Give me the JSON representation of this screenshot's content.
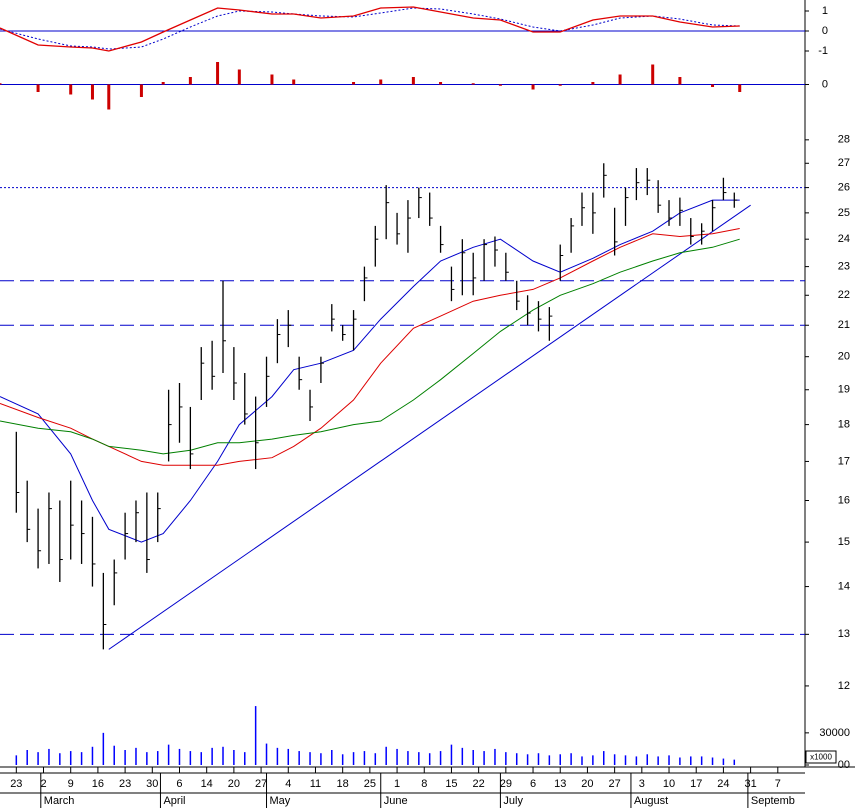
{
  "chart_data": {
    "type": "stock",
    "xlim": [
      -3,
      145
    ],
    "xticks": [
      {
        "value": 0,
        "label": "23"
      },
      {
        "value": 5,
        "label": "2"
      },
      {
        "value": 10,
        "label": "9"
      },
      {
        "value": 15,
        "label": "16"
      },
      {
        "value": 20,
        "label": "23"
      },
      {
        "value": 25,
        "label": "30"
      },
      {
        "value": 30,
        "label": "6"
      },
      {
        "value": 35,
        "label": "14"
      },
      {
        "value": 40,
        "label": "20"
      },
      {
        "value": 45,
        "label": "27"
      },
      {
        "value": 50,
        "label": "4"
      },
      {
        "value": 55,
        "label": "11"
      },
      {
        "value": 60,
        "label": "18"
      },
      {
        "value": 65,
        "label": "25"
      },
      {
        "value": 70,
        "label": "1"
      },
      {
        "value": 75,
        "label": "8"
      },
      {
        "value": 80,
        "label": "15"
      },
      {
        "value": 85,
        "label": "22"
      },
      {
        "value": 90,
        "label": "29"
      },
      {
        "value": 95,
        "label": "6"
      },
      {
        "value": 100,
        "label": "13"
      },
      {
        "value": 105,
        "label": "20"
      },
      {
        "value": 110,
        "label": "27"
      },
      {
        "value": 115,
        "label": "3"
      },
      {
        "value": 120,
        "label": "10"
      },
      {
        "value": 125,
        "label": "17"
      },
      {
        "value": 130,
        "label": "24"
      },
      {
        "value": 135,
        "label": "31"
      },
      {
        "value": 140,
        "label": "7"
      }
    ],
    "months": [
      {
        "value": 4.5,
        "label": "March"
      },
      {
        "value": 26.5,
        "label": "April"
      },
      {
        "value": 46,
        "label": "May"
      },
      {
        "value": 67,
        "label": "June"
      },
      {
        "value": 89,
        "label": "July"
      },
      {
        "value": 113,
        "label": "August"
      },
      {
        "value": 134.5,
        "label": "Septemb"
      }
    ],
    "ma_x": [
      -3,
      4,
      10,
      14,
      17,
      23,
      27,
      32,
      37,
      41,
      47,
      51,
      56,
      62,
      67,
      73,
      78,
      84,
      89,
      95,
      100,
      106,
      111,
      117,
      122,
      128,
      133
    ],
    "macd": {
      "ylim": [
        -1.25,
        1.55
      ],
      "yticks": [
        1,
        0,
        -1
      ],
      "zero_line": true,
      "zero_color": "#0000cc",
      "line_color": "#e00000",
      "signal_color": "#0000cc",
      "signal_style": "dotted",
      "line": [
        0.15,
        -0.7,
        -0.8,
        -0.85,
        -1.0,
        -0.55,
        -0.05,
        0.55,
        1.15,
        1.05,
        0.85,
        0.85,
        0.65,
        0.75,
        1.15,
        1.2,
        0.95,
        0.65,
        0.55,
        -0.05,
        -0.05,
        0.55,
        0.75,
        0.75,
        0.45,
        0.2,
        0.25
      ],
      "signal": [
        0.1,
        -0.4,
        -0.75,
        -0.8,
        -0.9,
        -0.8,
        -0.4,
        0.2,
        0.75,
        1.0,
        0.95,
        0.85,
        0.75,
        0.7,
        0.9,
        1.15,
        1.1,
        0.85,
        0.6,
        0.2,
        0.0,
        0.3,
        0.65,
        0.75,
        0.6,
        0.3,
        0.25
      ]
    },
    "histogram": {
      "ylim": [
        -1.1,
        1.06
      ],
      "yticks": [
        0
      ],
      "zero_line": true,
      "zero_color": "#0000cc",
      "color": "#cc0000",
      "values": [
        0.05,
        -0.3,
        -0.4,
        -0.6,
        -1.0,
        -0.5,
        0.1,
        0.3,
        0.9,
        0.6,
        0.4,
        0.2,
        0.0,
        0.1,
        0.2,
        0.3,
        0.1,
        0.05,
        -0.05,
        -0.2,
        -0.05,
        0.1,
        0.4,
        0.8,
        0.3,
        -0.1,
        -0.3
      ]
    },
    "price": {
      "log_scale": true,
      "ylim": [
        11.65,
        29.1
      ],
      "yticks": [
        28,
        27,
        26,
        25,
        24,
        23,
        22,
        21,
        20,
        19,
        18,
        17,
        16,
        15,
        14,
        13,
        12
      ],
      "color": "#000000",
      "x": [
        0,
        2,
        4,
        6,
        8,
        10,
        12,
        14,
        16,
        18,
        20,
        22,
        24,
        26,
        28,
        30,
        32,
        34,
        36,
        38,
        40,
        42,
        44,
        46,
        48,
        50,
        52,
        54,
        56,
        58,
        60,
        62,
        64,
        66,
        68,
        70,
        72,
        74,
        76,
        78,
        80,
        82,
        84,
        86,
        88,
        90,
        92,
        94,
        96,
        98,
        100,
        102,
        104,
        106,
        108,
        110,
        112,
        114,
        116,
        118,
        120,
        122,
        124,
        126,
        128,
        130,
        132
      ],
      "high": [
        17.8,
        16.5,
        15.8,
        16.2,
        16.0,
        16.5,
        16.0,
        15.6,
        14.3,
        14.6,
        15.7,
        16.0,
        16.2,
        16.2,
        19.0,
        19.2,
        18.5,
        20.3,
        20.5,
        22.5,
        20.3,
        19.5,
        18.8,
        20.0,
        21.2,
        21.5,
        20.0,
        19.0,
        20.0,
        21.7,
        21.0,
        21.5,
        23.0,
        24.5,
        26.1,
        25.0,
        25.5,
        26.0,
        25.8,
        24.5,
        23.0,
        24.0,
        23.5,
        24.0,
        24.1,
        23.5,
        22.5,
        22.0,
        21.8,
        21.6,
        23.8,
        24.8,
        25.8,
        25.8,
        27.0,
        25.2,
        26.0,
        26.8,
        26.8,
        26.3,
        25.5,
        25.6,
        24.8,
        24.6,
        25.5,
        26.4,
        25.8
      ],
      "low": [
        15.7,
        15.0,
        14.4,
        14.5,
        14.1,
        14.6,
        14.5,
        14.0,
        12.7,
        13.6,
        14.6,
        15.0,
        14.3,
        15.0,
        17.0,
        17.5,
        16.8,
        18.7,
        19.0,
        19.5,
        18.7,
        18.0,
        16.8,
        18.5,
        19.8,
        20.3,
        19.0,
        18.1,
        19.2,
        20.8,
        20.5,
        20.2,
        21.8,
        23.0,
        24.0,
        23.8,
        23.5,
        24.8,
        24.5,
        23.5,
        21.8,
        22.0,
        22.0,
        22.5,
        23.0,
        22.5,
        21.5,
        21.0,
        20.8,
        20.5,
        22.5,
        23.5,
        24.5,
        24.2,
        25.6,
        23.4,
        24.5,
        25.5,
        25.7,
        25.0,
        24.5,
        24.5,
        23.8,
        23.8,
        24.3,
        25.5,
        25.2
      ],
      "close": [
        16.2,
        15.3,
        14.8,
        15.8,
        14.6,
        15.4,
        15.2,
        14.5,
        13.2,
        14.3,
        15.2,
        15.7,
        14.6,
        15.8,
        18.0,
        18.5,
        17.2,
        19.8,
        19.4,
        20.5,
        19.2,
        18.3,
        17.5,
        19.4,
        20.7,
        21.0,
        19.3,
        18.5,
        19.8,
        21.2,
        20.7,
        21.2,
        22.6,
        24.0,
        25.4,
        24.2,
        24.8,
        25.6,
        24.8,
        23.8,
        22.2,
        23.5,
        22.6,
        23.8,
        23.6,
        22.8,
        21.8,
        21.4,
        21.2,
        21.3,
        23.4,
        24.5,
        25.2,
        25.0,
        26.5,
        23.9,
        25.6,
        26.2,
        26.3,
        25.3,
        24.8,
        25.1,
        24.1,
        24.3,
        25.2,
        25.8,
        25.5
      ],
      "moving_averages": [
        {
          "color": "#0000cc",
          "values": [
            18.8,
            18.3,
            17.2,
            16.0,
            15.3,
            15.0,
            15.2,
            16.0,
            17.0,
            18.0,
            18.8,
            19.6,
            19.8,
            20.2,
            21.2,
            22.3,
            23.2,
            23.7,
            24.0,
            23.2,
            22.8,
            23.3,
            23.8,
            24.3,
            25.0,
            25.5,
            25.5
          ]
        },
        {
          "color": "#dd0000",
          "values": [
            18.6,
            18.2,
            17.9,
            17.6,
            17.4,
            17.0,
            16.9,
            16.9,
            16.9,
            17.0,
            17.1,
            17.4,
            17.9,
            18.7,
            19.8,
            20.9,
            21.3,
            21.8,
            22.0,
            22.2,
            22.6,
            23.2,
            23.7,
            24.2,
            24.1,
            24.2,
            24.4
          ]
        },
        {
          "color": "#008000",
          "values": [
            18.1,
            17.9,
            17.8,
            17.6,
            17.4,
            17.3,
            17.2,
            17.3,
            17.5,
            17.5,
            17.6,
            17.7,
            17.8,
            18.0,
            18.1,
            18.7,
            19.3,
            20.1,
            20.8,
            21.5,
            22.0,
            22.4,
            22.8,
            23.2,
            23.5,
            23.7,
            24.0
          ]
        }
      ],
      "levels": [
        {
          "value": 26,
          "style": "dotted"
        },
        {
          "value": 22.5,
          "style": "dashed"
        },
        {
          "value": 21,
          "style": "dashed"
        },
        {
          "value": 13,
          "style": "dashed"
        }
      ],
      "level_color": "#0000cc",
      "trendlines": [
        {
          "x": [
            17,
            135
          ],
          "y": [
            12.7,
            25.3
          ]
        }
      ],
      "trendline_color": "#0000cc"
    },
    "volume": {
      "ylim": [
        0,
        56000
      ],
      "yticks": [
        30000,
        {
          "value": 0,
          "label": "00"
        }
      ],
      "unit_label": "x1000",
      "color": "#0000ff",
      "values": [
        9000,
        14000,
        12000,
        15000,
        11000,
        13000,
        12000,
        17000,
        30000,
        18000,
        14000,
        16000,
        12000,
        13000,
        19000,
        15000,
        13000,
        12000,
        16000,
        17000,
        14000,
        12000,
        55000,
        20000,
        16000,
        15000,
        13000,
        12000,
        11000,
        14000,
        10000,
        12000,
        13000,
        11000,
        17000,
        15000,
        13000,
        12000,
        11000,
        13000,
        19000,
        16000,
        14000,
        13000,
        15000,
        12000,
        11000,
        10000,
        11000,
        9000,
        10000,
        11000,
        8000,
        9000,
        13000,
        10000,
        9000,
        8000,
        10000,
        8000,
        9000,
        7000,
        8000,
        8000,
        7000,
        6000,
        5000
      ]
    }
  }
}
